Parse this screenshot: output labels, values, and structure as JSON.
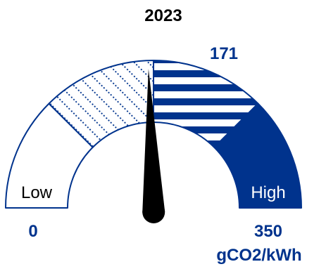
{
  "chart_data": {
    "type": "gauge",
    "title": "2023",
    "value": 171,
    "value_label": "171",
    "min": 0,
    "max": 350,
    "min_label": "0",
    "max_label": "350",
    "unit": "gCO2/kWh",
    "bands": [
      {
        "from": 0,
        "to": 87.5,
        "label": "Low",
        "fill": "solid-white"
      },
      {
        "from": 87.5,
        "to": 175,
        "label": "",
        "fill": "dotted-diagonal"
      },
      {
        "from": 175,
        "to": 262.5,
        "label": "",
        "fill": "horizontal-stripes"
      },
      {
        "from": 262.5,
        "to": 350,
        "label": "High",
        "fill": "solid-navy"
      }
    ]
  },
  "colors": {
    "navy": "#00338d",
    "needle": "#000000",
    "background": "#ffffff"
  }
}
